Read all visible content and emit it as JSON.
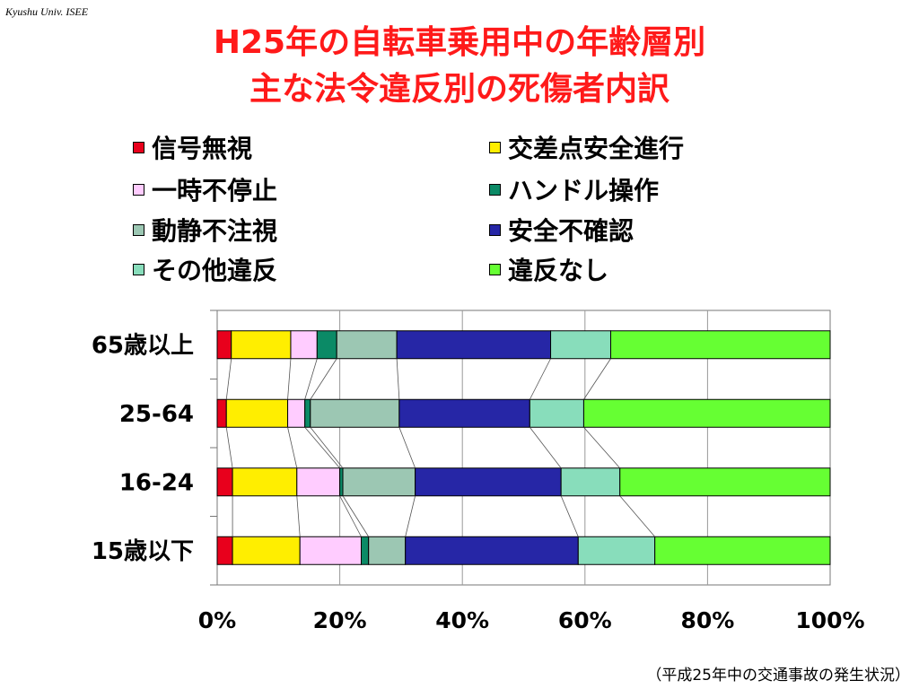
{
  "header": {
    "org": "Kyushu Univ. ISEE",
    "title_line1": "H25年の自転車乗用中の年齢層別",
    "title_line2": "主な法令違反別の死傷者内訳"
  },
  "source": "（平成25年中の交通事故の発生状況）",
  "chart_data": {
    "type": "bar",
    "orientation": "horizontal",
    "stacked": "100%",
    "categories": [
      "65歳以上",
      "25-64",
      "16-24",
      "15歳以下"
    ],
    "series": [
      {
        "name": "信号無視",
        "color": "#e8001c",
        "values": [
          2.3,
          1.5,
          2.5,
          2.5
        ]
      },
      {
        "name": "交差点安全進行",
        "color": "#ffee00",
        "values": [
          9.7,
          10.0,
          10.5,
          11.0
        ]
      },
      {
        "name": "一時不停止",
        "color": "#ffccff",
        "values": [
          4.3,
          2.8,
          7.0,
          10.0
        ]
      },
      {
        "name": "ハンドル操作",
        "color": "#0b8a66",
        "values": [
          3.2,
          0.9,
          0.5,
          1.2
        ]
      },
      {
        "name": "動静不注視",
        "color": "#9cc7b3",
        "values": [
          9.8,
          14.5,
          11.8,
          6.0
        ]
      },
      {
        "name": "安全不確認",
        "color": "#2626a6",
        "values": [
          25.1,
          21.3,
          23.8,
          28.2
        ]
      },
      {
        "name": "その他違反",
        "color": "#88ddbb",
        "values": [
          9.8,
          8.8,
          9.6,
          12.5
        ]
      },
      {
        "name": "違反なし",
        "color": "#66ff33",
        "values": [
          35.8,
          40.2,
          34.3,
          28.6
        ]
      }
    ],
    "xlim": [
      0,
      100
    ],
    "xticks": [
      "0%",
      "20%",
      "40%",
      "60%",
      "80%",
      "100%"
    ],
    "grid": true,
    "legend_position": "top",
    "series_lines": true
  }
}
